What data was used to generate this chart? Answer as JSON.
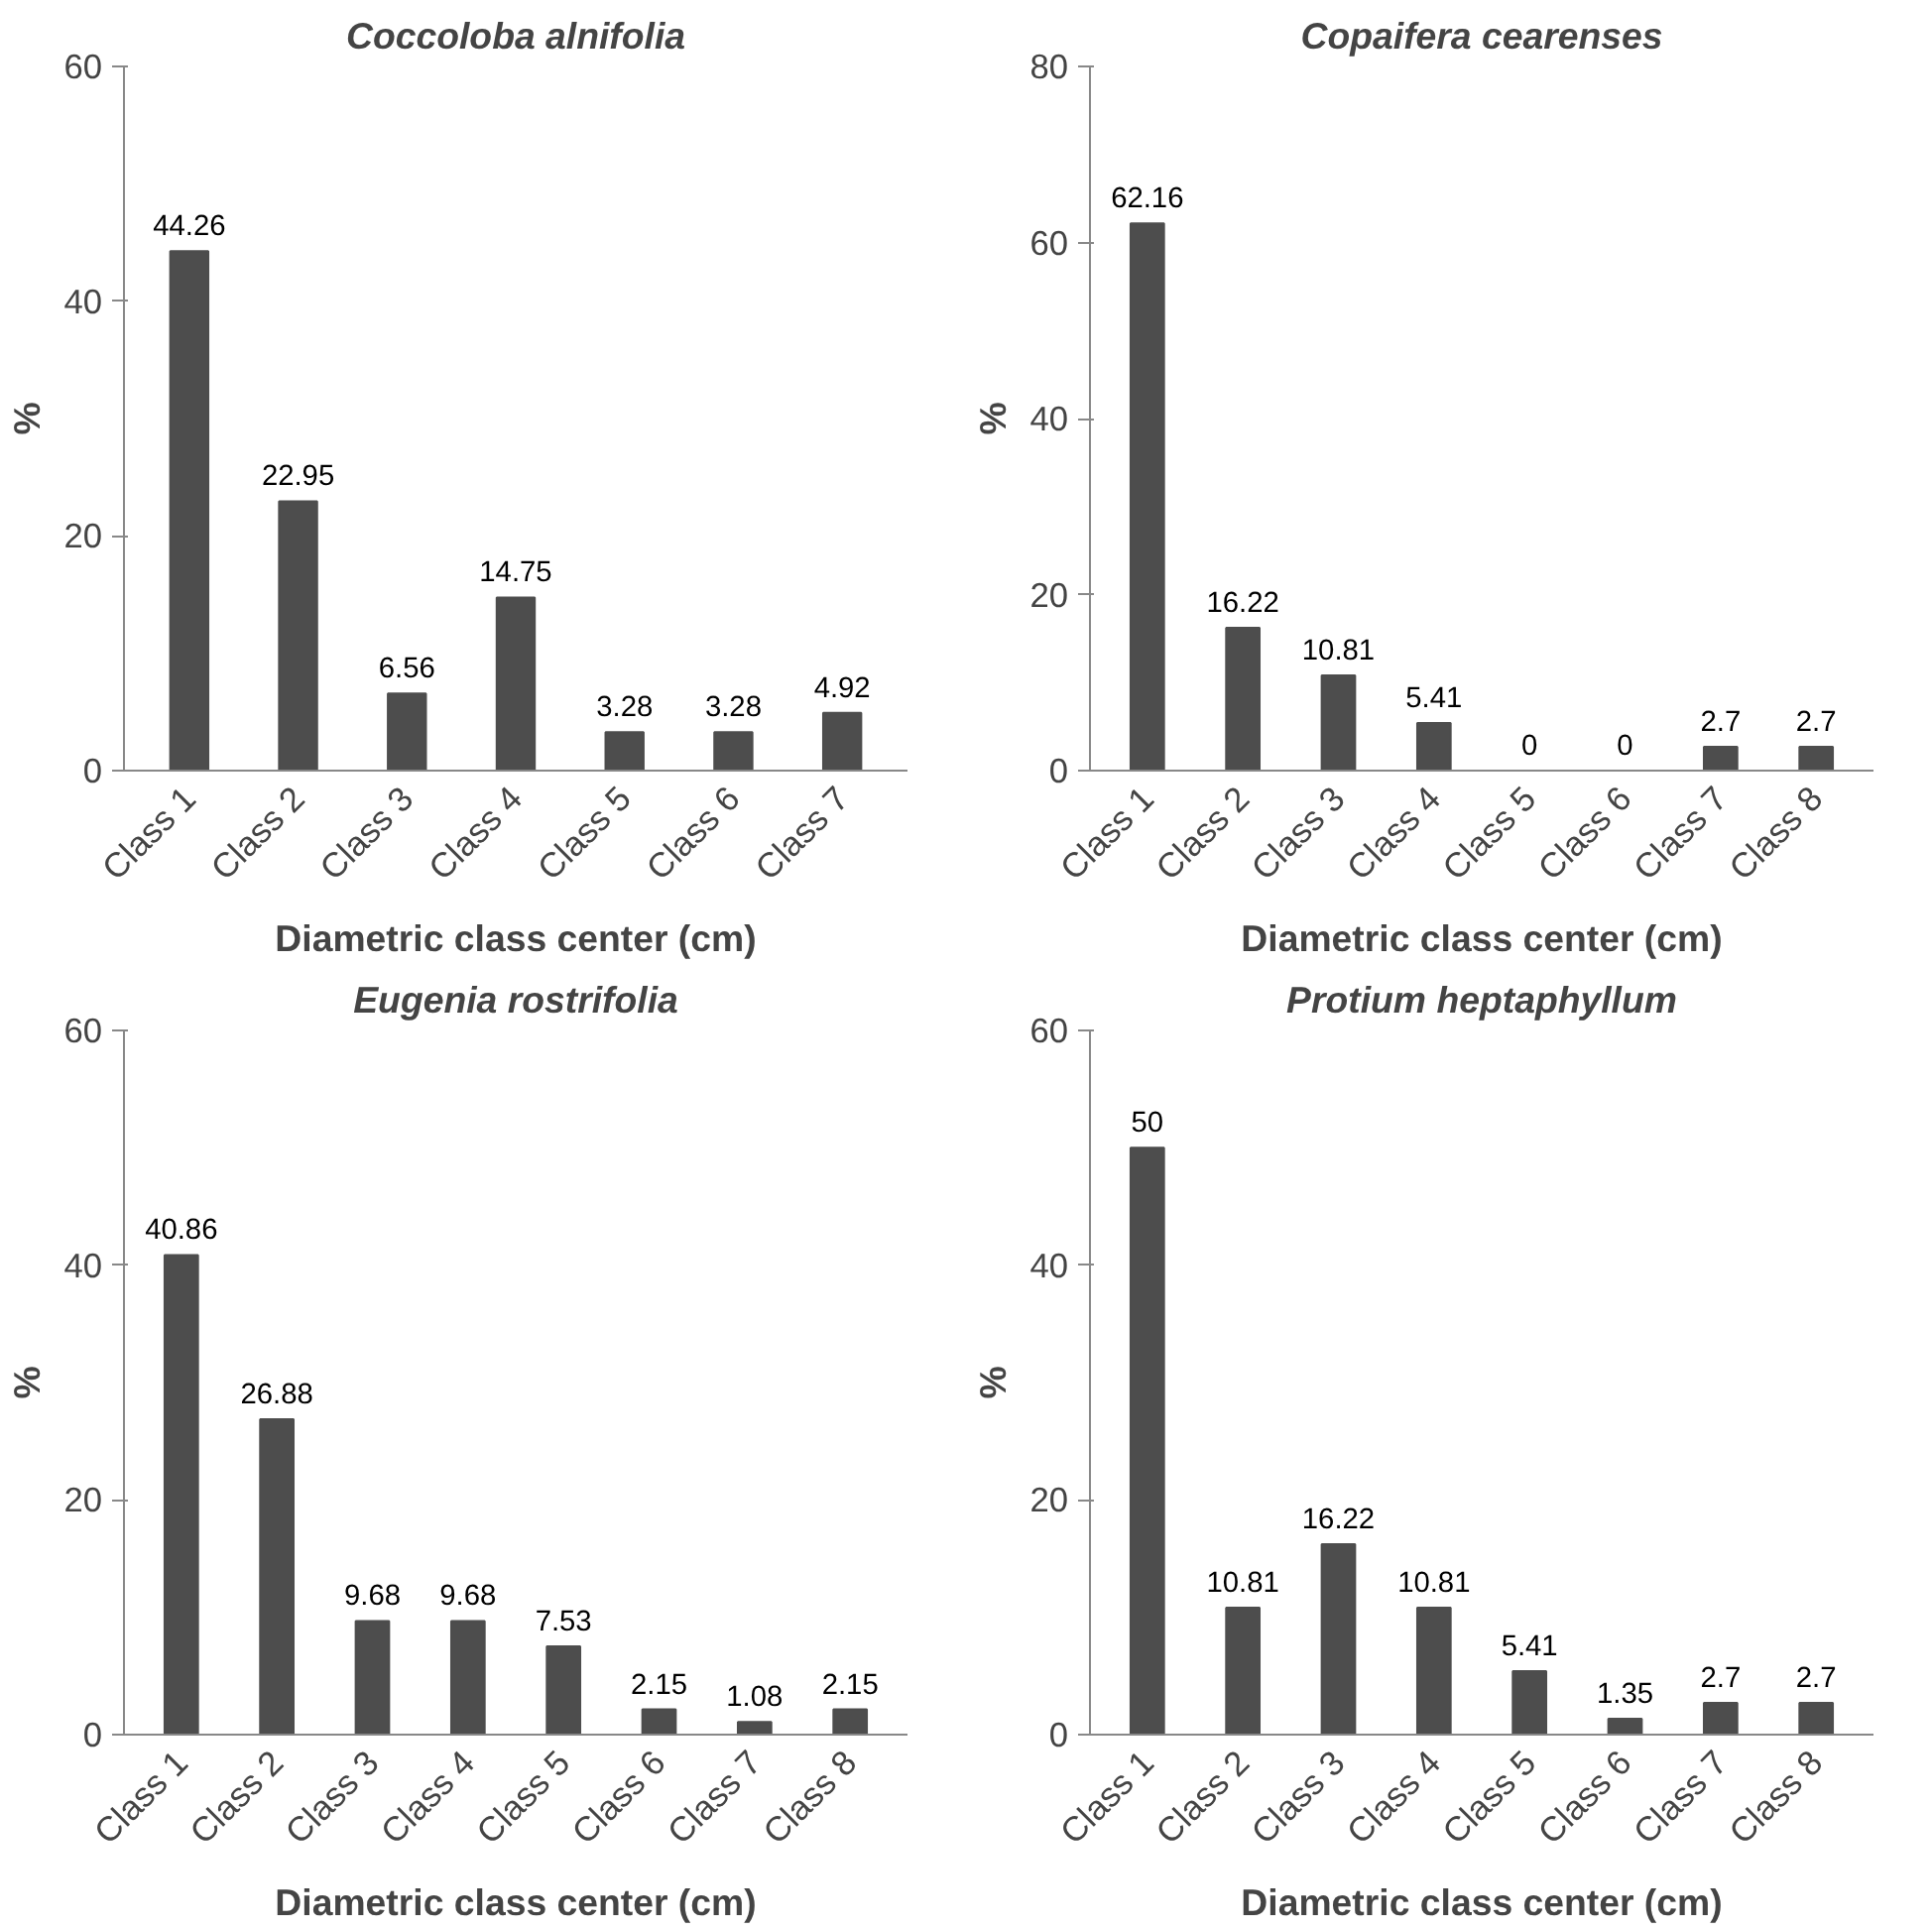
{
  "chart_data": [
    {
      "type": "bar",
      "title": "Coccoloba alnifolia",
      "xlabel": "Diametric class center (cm)",
      "ylabel": "%",
      "categories": [
        "Class 1",
        "Class 2",
        "Class 3",
        "Class 4",
        "Class 5",
        "Class 6",
        "Class 7"
      ],
      "values": [
        44.26,
        22.95,
        6.56,
        14.75,
        3.28,
        3.28,
        4.92
      ],
      "color": "#4d4d4d",
      "ylim": [
        0,
        60
      ],
      "yticks": [
        0,
        20,
        40,
        60
      ],
      "data_labels": true,
      "grid": false
    },
    {
      "type": "bar",
      "title": "Copaifera cearenses",
      "xlabel": "Diametric class center (cm)",
      "ylabel": "%",
      "categories": [
        "Class 1",
        "Class 2",
        "Class 3",
        "Class 4",
        "Class 5",
        "Class 6",
        "Class 7",
        "Class 8"
      ],
      "values": [
        62.16,
        16.22,
        10.81,
        5.41,
        0,
        0,
        2.7,
        2.7
      ],
      "color": "#4d4d4d",
      "ylim": [
        0,
        80
      ],
      "yticks": [
        0,
        20,
        40,
        60,
        80
      ],
      "data_labels": true,
      "grid": false
    },
    {
      "type": "bar",
      "title": "Eugenia rostrifolia",
      "xlabel": "Diametric class center (cm)",
      "ylabel": "%",
      "categories": [
        "Class 1",
        "Class 2",
        "Class 3",
        "Class 4",
        "Class 5",
        "Class 6",
        "Class 7",
        "Class 8"
      ],
      "values": [
        40.86,
        26.88,
        9.68,
        9.68,
        7.53,
        2.15,
        1.08,
        2.15
      ],
      "color": "#4d4d4d",
      "ylim": [
        0,
        60
      ],
      "yticks": [
        0,
        20,
        40,
        60
      ],
      "data_labels": true,
      "grid": false
    },
    {
      "type": "bar",
      "title": "Protium heptaphyllum",
      "xlabel": "Diametric class center (cm)",
      "ylabel": "%",
      "categories": [
        "Class 1",
        "Class 2",
        "Class 3",
        "Class 4",
        "Class 5",
        "Class 6",
        "Class 7",
        "Class 8"
      ],
      "values": [
        50,
        10.81,
        16.22,
        10.81,
        5.41,
        1.35,
        2.7,
        2.7
      ],
      "color": "#4d4d4d",
      "ylim": [
        0,
        60
      ],
      "yticks": [
        0,
        20,
        40,
        60
      ],
      "data_labels": true,
      "grid": false
    }
  ]
}
